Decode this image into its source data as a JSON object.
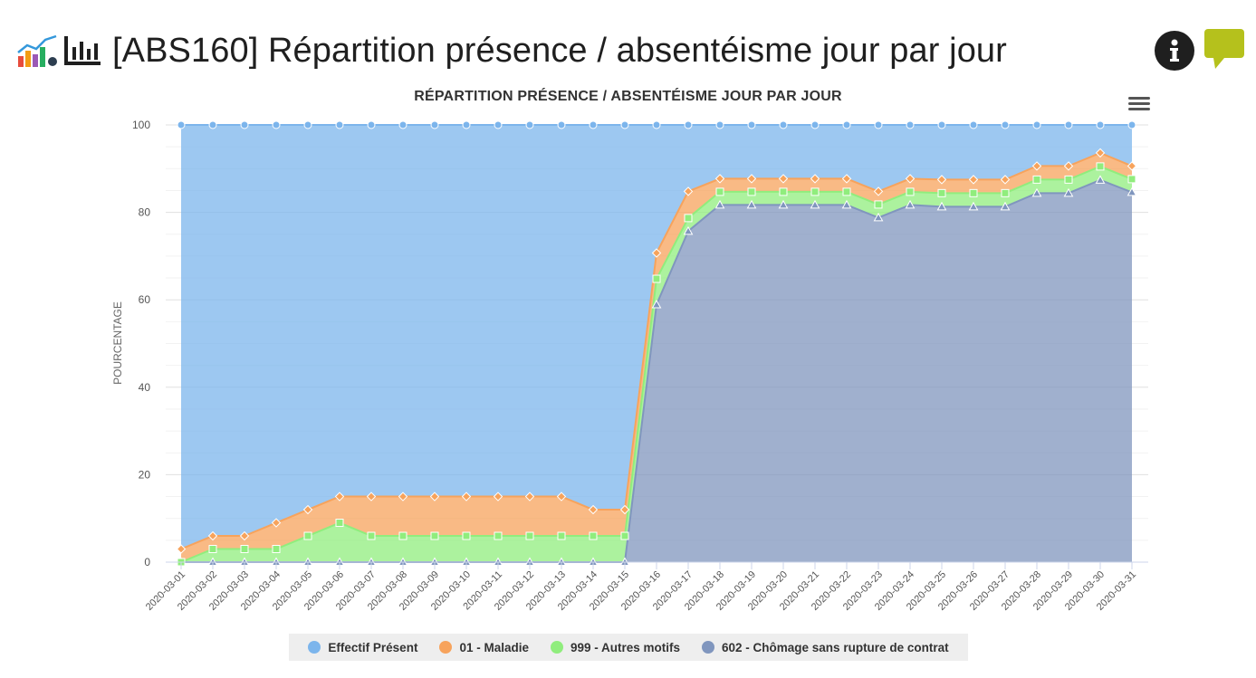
{
  "header": {
    "title": "[ABS160] Répartition présence / absentéisme jour par jour"
  },
  "chart_data": {
    "type": "area",
    "stacked": true,
    "title": "RÉPARTITION PRÉSENCE / ABSENTÉISME JOUR PAR JOUR",
    "ylabel": "POURCENTAGE",
    "xlabel": "",
    "ylim": [
      0,
      100
    ],
    "yticks": [
      0,
      20,
      40,
      60,
      80,
      100
    ],
    "grid": true,
    "legend_position": "bottom",
    "categories": [
      "2020-03-01",
      "2020-03-02",
      "2020-03-03",
      "2020-03-04",
      "2020-03-05",
      "2020-03-06",
      "2020-03-07",
      "2020-03-08",
      "2020-03-09",
      "2020-03-10",
      "2020-03-11",
      "2020-03-12",
      "2020-03-13",
      "2020-03-14",
      "2020-03-15",
      "2020-03-16",
      "2020-03-17",
      "2020-03-18",
      "2020-03-19",
      "2020-03-20",
      "2020-03-21",
      "2020-03-22",
      "2020-03-23",
      "2020-03-24",
      "2020-03-25",
      "2020-03-26",
      "2020-03-27",
      "2020-03-28",
      "2020-03-29",
      "2020-03-30",
      "2020-03-31"
    ],
    "series": [
      {
        "name": "Effectif Présent",
        "color": "#7cb5ec",
        "marker": "circle",
        "values": [
          97,
          94,
          94,
          91,
          88,
          85,
          85,
          85,
          85,
          85,
          85,
          85,
          85,
          88,
          88,
          29.3,
          15.2,
          12.3,
          12.3,
          12.3,
          12.3,
          12.3,
          15.2,
          12.3,
          12.5,
          12.5,
          12.5,
          9.4,
          9.4,
          6.4,
          9.4
        ]
      },
      {
        "name": "01 - Maladie",
        "color": "#f7a35c",
        "marker": "diamond",
        "values": [
          3,
          3,
          3,
          6,
          6,
          6,
          9,
          9,
          9,
          9,
          9,
          9,
          9,
          6,
          6,
          5.9,
          6.1,
          3.0,
          3.0,
          3.0,
          3.0,
          3.0,
          3.0,
          3.0,
          3.1,
          3.1,
          3.1,
          3.1,
          3.1,
          3.1,
          3.0
        ]
      },
      {
        "name": "999 - Autres motifs",
        "color": "#90ed7d",
        "marker": "square",
        "values": [
          0,
          3,
          3,
          3,
          6,
          9,
          6,
          6,
          6,
          6,
          6,
          6,
          6,
          6,
          6,
          5.9,
          3.0,
          3.0,
          3.0,
          3.0,
          3.0,
          3.0,
          3.0,
          3.0,
          3.1,
          3.1,
          3.1,
          3.1,
          3.1,
          3.1,
          3.0
        ]
      },
      {
        "name": "602 - Chômage sans rupture de contrat",
        "color": "#8096be",
        "marker": "triangle",
        "values": [
          0,
          0,
          0,
          0,
          0,
          0,
          0,
          0,
          0,
          0,
          0,
          0,
          0,
          0,
          0,
          58.9,
          75.7,
          81.7,
          81.7,
          81.7,
          81.7,
          81.7,
          78.8,
          81.7,
          81.3,
          81.3,
          81.3,
          84.4,
          84.4,
          87.4,
          84.6
        ]
      }
    ]
  }
}
